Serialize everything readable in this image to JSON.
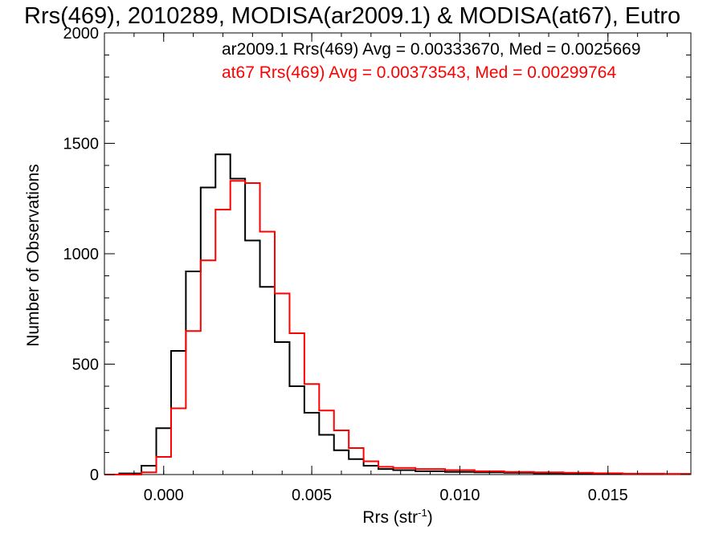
{
  "chart_data": {
    "type": "line",
    "title": "Rrs(469), 2010289, MODISA(ar2009.1) & MODISA(at67), Eutro",
    "xlabel": "Rrs (str",
    "xlabel_sup": "-1",
    "xlabel_end": ")",
    "ylabel": "Number of Observations",
    "xlim": [
      -0.002,
      0.0178
    ],
    "ylim": [
      0,
      2000
    ],
    "x_ticks": [
      0.0,
      0.005,
      0.01,
      0.015
    ],
    "x_tick_labels": [
      "0.000",
      "0.005",
      "0.010",
      "0.015"
    ],
    "y_ticks": [
      0,
      500,
      1000,
      1500,
      2000
    ],
    "y_tick_labels": [
      "0",
      "500",
      "1000",
      "1500",
      "2000"
    ],
    "grid": false,
    "legend_position": "top-right",
    "annotations": [
      {
        "text": "ar2009.1 Rrs(469) Avg = 0.00333670, Med = 0.0025669",
        "color": "#000000"
      },
      {
        "text": "at67 Rrs(469) Avg = 0.00373543, Med = 0.00299764",
        "color": "#ff0000"
      }
    ],
    "series": [
      {
        "color": "#000000",
        "x": [
          -0.002,
          -0.001,
          -0.0005,
          0.0,
          0.0005,
          0.001,
          0.0015,
          0.002,
          0.0025,
          0.003,
          0.0035,
          0.004,
          0.0045,
          0.005,
          0.0055,
          0.006,
          0.0065,
          0.007,
          0.0075,
          0.008,
          0.009,
          0.01,
          0.011,
          0.012,
          0.013,
          0.014,
          0.015,
          0.016,
          0.0178
        ],
        "y": [
          0,
          5,
          40,
          210,
          560,
          920,
          1300,
          1450,
          1340,
          1060,
          850,
          600,
          400,
          280,
          180,
          110,
          70,
          40,
          25,
          20,
          15,
          12,
          10,
          8,
          6,
          5,
          4,
          3,
          2
        ]
      },
      {
        "color": "#ff0000",
        "x": [
          -0.002,
          -0.001,
          -0.0005,
          0.0,
          0.0005,
          0.001,
          0.0015,
          0.002,
          0.0025,
          0.003,
          0.0035,
          0.004,
          0.0045,
          0.005,
          0.0055,
          0.006,
          0.0065,
          0.007,
          0.0075,
          0.008,
          0.009,
          0.01,
          0.011,
          0.012,
          0.013,
          0.014,
          0.015,
          0.016,
          0.0178
        ],
        "y": [
          0,
          0,
          10,
          80,
          300,
          650,
          970,
          1200,
          1330,
          1320,
          1100,
          820,
          640,
          410,
          290,
          200,
          120,
          60,
          35,
          30,
          25,
          20,
          15,
          12,
          10,
          8,
          6,
          4,
          3
        ]
      }
    ]
  }
}
